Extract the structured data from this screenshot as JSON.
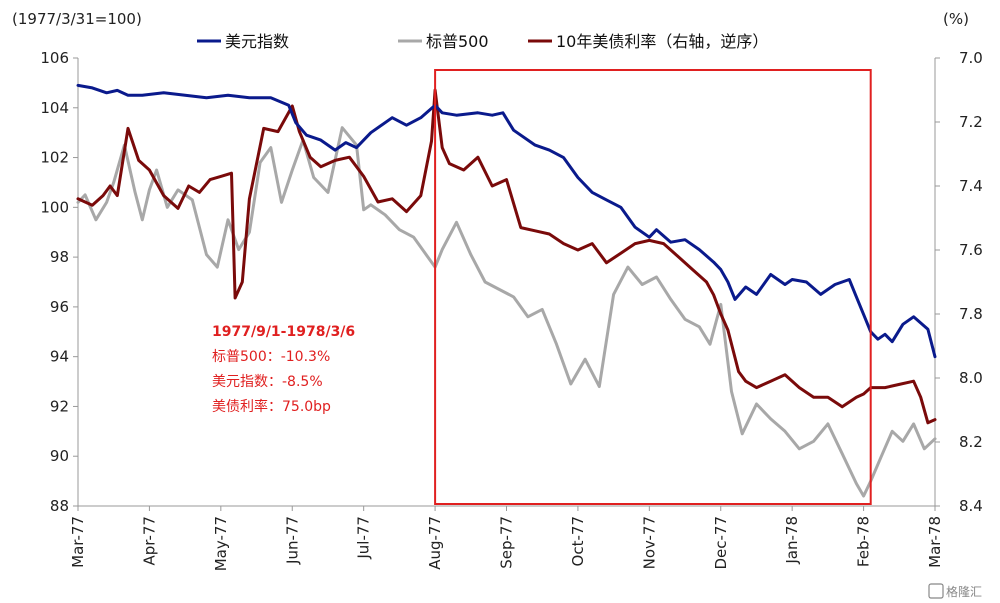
{
  "chart_data": {
    "type": "line",
    "left_unit": "(1977/3/31=100)",
    "right_unit": "(%)",
    "x_categories": [
      "Mar-77",
      "Apr-77",
      "May-77",
      "Jun-77",
      "Jul-77",
      "Aug-77",
      "Sep-77",
      "Oct-77",
      "Nov-77",
      "Dec-77",
      "Jan-78",
      "Feb-78",
      "Mar-78"
    ],
    "x_range": [
      0,
      12
    ],
    "y_left": {
      "range": [
        88,
        106
      ],
      "ticks": [
        88,
        90,
        92,
        94,
        96,
        98,
        100,
        102,
        104,
        106
      ]
    },
    "y_right": {
      "range": [
        7.0,
        8.4
      ],
      "inverted": true,
      "ticks": [
        "7.0",
        "7.2",
        "7.4",
        "7.6",
        "7.8",
        "8.0",
        "8.2",
        "8.4"
      ]
    },
    "legend_position": "top",
    "series": [
      {
        "name": "美元指数",
        "axis": "left",
        "color": "#0a1a8c",
        "x": [
          0.0,
          0.2,
          0.4,
          0.55,
          0.7,
          0.9,
          1.2,
          1.5,
          1.8,
          2.1,
          2.4,
          2.7,
          2.95,
          3.05,
          3.2,
          3.4,
          3.6,
          3.75,
          3.9,
          4.1,
          4.4,
          4.6,
          4.8,
          5.0,
          5.1,
          5.3,
          5.6,
          5.8,
          5.95,
          6.1,
          6.4,
          6.6,
          6.8,
          7.0,
          7.2,
          7.4,
          7.6,
          7.8,
          8.0,
          8.1,
          8.3,
          8.5,
          8.7,
          8.9,
          9.0,
          9.1,
          9.2,
          9.35,
          9.5,
          9.7,
          9.9,
          10.0,
          10.2,
          10.4,
          10.6,
          10.8,
          10.9,
          11.0,
          11.1,
          11.2,
          11.3,
          11.4,
          11.55,
          11.7,
          11.9,
          12.0
        ],
        "y": [
          104.9,
          104.8,
          104.6,
          104.7,
          104.5,
          104.5,
          104.6,
          104.5,
          104.4,
          104.5,
          104.4,
          104.4,
          104.1,
          103.4,
          102.9,
          102.7,
          102.3,
          102.6,
          102.4,
          103.0,
          103.6,
          103.3,
          103.6,
          104.1,
          103.8,
          103.7,
          103.8,
          103.7,
          103.8,
          103.1,
          102.5,
          102.3,
          102.0,
          101.2,
          100.6,
          100.3,
          100.0,
          99.2,
          98.8,
          99.1,
          98.6,
          98.7,
          98.3,
          97.8,
          97.5,
          97.0,
          96.3,
          96.8,
          96.5,
          97.3,
          96.9,
          97.1,
          97.0,
          96.5,
          96.9,
          97.1,
          96.4,
          95.7,
          95.0,
          94.7,
          94.9,
          94.6,
          95.3,
          95.6,
          95.1,
          94.0
        ]
      },
      {
        "name": "标普500",
        "axis": "left",
        "color": "#a8a8a8",
        "x": [
          0.0,
          0.1,
          0.25,
          0.4,
          0.5,
          0.65,
          0.8,
          0.9,
          1.0,
          1.1,
          1.25,
          1.4,
          1.6,
          1.8,
          1.95,
          2.1,
          2.25,
          2.4,
          2.55,
          2.7,
          2.85,
          3.0,
          3.15,
          3.3,
          3.5,
          3.7,
          3.9,
          4.0,
          4.1,
          4.3,
          4.5,
          4.7,
          4.9,
          5.0,
          5.1,
          5.3,
          5.5,
          5.7,
          5.9,
          6.1,
          6.3,
          6.5,
          6.7,
          6.9,
          7.1,
          7.3,
          7.5,
          7.7,
          7.9,
          8.1,
          8.3,
          8.5,
          8.7,
          8.85,
          9.0,
          9.15,
          9.3,
          9.5,
          9.7,
          9.9,
          10.1,
          10.3,
          10.5,
          10.7,
          10.9,
          11.0,
          11.1,
          11.25,
          11.4,
          11.55,
          11.7,
          11.85,
          12.0
        ],
        "y": [
          100.2,
          100.5,
          99.5,
          100.2,
          101.0,
          102.5,
          100.6,
          99.5,
          100.7,
          101.5,
          100.0,
          100.7,
          100.3,
          98.1,
          97.6,
          99.5,
          98.3,
          99.0,
          101.8,
          102.4,
          100.2,
          101.5,
          102.7,
          101.2,
          100.6,
          103.2,
          102.5,
          99.9,
          100.1,
          99.7,
          99.1,
          98.8,
          98.0,
          97.6,
          98.3,
          99.4,
          98.1,
          97.0,
          96.7,
          96.4,
          95.6,
          95.9,
          94.5,
          92.9,
          93.9,
          92.8,
          96.5,
          97.6,
          96.9,
          97.2,
          96.3,
          95.5,
          95.2,
          94.5,
          96.1,
          92.6,
          90.9,
          92.1,
          91.5,
          91.0,
          90.3,
          90.6,
          91.3,
          90.1,
          88.9,
          88.4,
          89.0,
          90.0,
          91.0,
          90.6,
          91.3,
          90.3,
          90.7
        ]
      },
      {
        "name": "10年美债利率（右轴，逆序）",
        "axis": "right",
        "color": "#7a0a0a",
        "x": [
          0.0,
          0.1,
          0.2,
          0.35,
          0.45,
          0.55,
          0.7,
          0.85,
          1.0,
          1.2,
          1.4,
          1.55,
          1.7,
          1.85,
          2.0,
          2.15,
          2.2,
          2.3,
          2.4,
          2.6,
          2.8,
          3.0,
          3.1,
          3.25,
          3.4,
          3.6,
          3.8,
          4.0,
          4.2,
          4.4,
          4.6,
          4.8,
          4.95,
          5.0,
          5.1,
          5.2,
          5.4,
          5.6,
          5.8,
          6.0,
          6.2,
          6.4,
          6.6,
          6.8,
          7.0,
          7.2,
          7.4,
          7.6,
          7.8,
          8.0,
          8.2,
          8.4,
          8.6,
          8.8,
          8.9,
          9.0,
          9.1,
          9.25,
          9.35,
          9.5,
          9.7,
          9.9,
          10.1,
          10.3,
          10.5,
          10.7,
          10.9,
          11.0,
          11.1,
          11.3,
          11.5,
          11.7,
          11.8,
          11.9,
          12.0
        ],
        "y": [
          7.44,
          7.45,
          7.46,
          7.43,
          7.4,
          7.43,
          7.22,
          7.32,
          7.35,
          7.43,
          7.47,
          7.4,
          7.42,
          7.38,
          7.37,
          7.36,
          7.75,
          7.7,
          7.44,
          7.22,
          7.23,
          7.15,
          7.23,
          7.31,
          7.34,
          7.32,
          7.31,
          7.37,
          7.45,
          7.44,
          7.48,
          7.43,
          7.26,
          7.1,
          7.28,
          7.33,
          7.35,
          7.31,
          7.4,
          7.38,
          7.53,
          7.54,
          7.55,
          7.58,
          7.6,
          7.58,
          7.64,
          7.61,
          7.58,
          7.57,
          7.58,
          7.62,
          7.66,
          7.7,
          7.74,
          7.8,
          7.85,
          7.98,
          8.01,
          8.03,
          8.01,
          7.99,
          8.03,
          8.06,
          8.06,
          8.09,
          8.06,
          8.05,
          8.03,
          8.03,
          8.02,
          8.01,
          8.06,
          8.14,
          8.13
        ]
      }
    ],
    "highlight_box": {
      "x_range": [
        5.0,
        11.1
      ],
      "color": "#e02020"
    },
    "annotations": [
      "1977/9/1-1978/3/6",
      "标普500：-10.3%",
      "美元指数：-8.5%",
      "美债利率：75.0bp"
    ]
  },
  "watermark": "格隆汇"
}
